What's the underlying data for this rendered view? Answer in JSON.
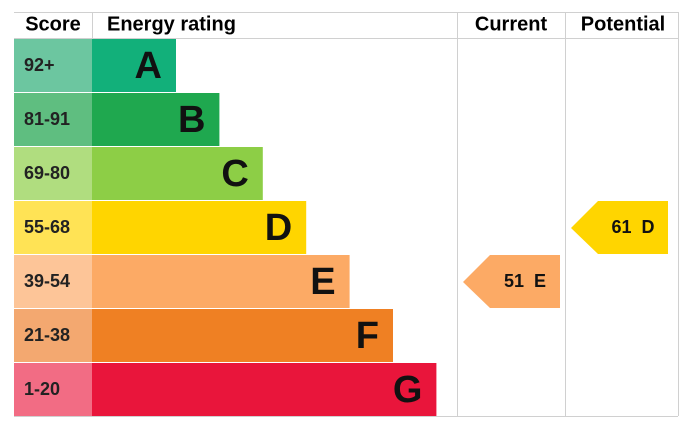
{
  "header": {
    "score": "Score",
    "rating": "Energy rating",
    "current": "Current",
    "potential": "Potential"
  },
  "bands": [
    {
      "score": "92+",
      "letter": "A",
      "color": "#12b07a",
      "score_color": "#6cc6a0"
    },
    {
      "score": "81-91",
      "letter": "B",
      "color": "#1fa84f",
      "score_color": "#5fbe80"
    },
    {
      "score": "69-80",
      "letter": "C",
      "color": "#8dce46",
      "score_color": "#b0dd7f"
    },
    {
      "score": "55-68",
      "letter": "D",
      "color": "#ffd500",
      "score_color": "#ffe355"
    },
    {
      "score": "39-54",
      "letter": "E",
      "color": "#fcaa65",
      "score_color": "#fdc598"
    },
    {
      "score": "21-38",
      "letter": "F",
      "color": "#ef8023",
      "score_color": "#f3a870"
    },
    {
      "score": "1-20",
      "letter": "G",
      "color": "#e9153b",
      "score_color": "#f26c84"
    }
  ],
  "current": {
    "score": 51,
    "letter": "E"
  },
  "potential": {
    "score": 61,
    "letter": "D"
  }
}
